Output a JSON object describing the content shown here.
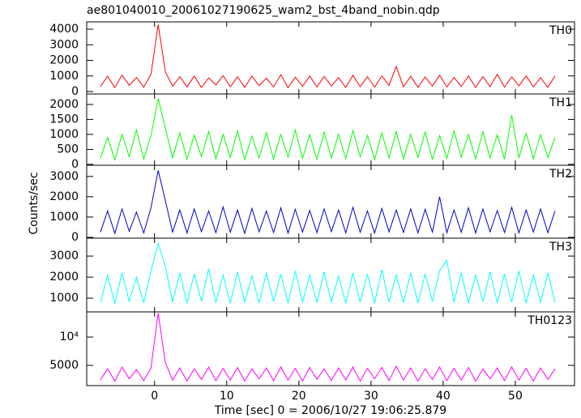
{
  "title": "ae801040010_20061027190625_wam2_bst_4band_nobin.qdp",
  "y_label": "Counts/sec",
  "x_label": "Time [sec] 0 = 2006/10/27 19:06:25.879",
  "chart_data": [
    {
      "type": "line",
      "label": "TH0",
      "color": "#ff0000",
      "log_y": false,
      "xlim": [
        -9.4,
        58.2
      ],
      "xticks": [
        0,
        10,
        20,
        30,
        40,
        50
      ],
      "ylim": [
        -156,
        4470
      ],
      "yticks": [
        0,
        1000,
        2000,
        3000,
        4000
      ],
      "x": [
        -7.5,
        -6.5,
        -5.5,
        -4.5,
        -3.5,
        -2.5,
        -1.5,
        -0.5,
        0.5,
        1.5,
        2.5,
        3.5,
        4.5,
        5.5,
        6.5,
        7.5,
        8.5,
        9.5,
        10.5,
        11.5,
        12.5,
        13.5,
        14.5,
        15.5,
        16.5,
        17.5,
        18.5,
        19.5,
        20.5,
        21.5,
        22.5,
        23.5,
        24.5,
        25.5,
        26.5,
        27.5,
        28.5,
        29.5,
        30.5,
        31.5,
        32.5,
        33.5,
        34.5,
        35.5,
        36.5,
        37.5,
        38.5,
        39.5,
        40.5,
        41.5,
        42.5,
        43.5,
        44.5,
        45.5,
        46.5,
        47.5,
        48.5,
        49.5,
        50.5,
        51.5,
        52.5,
        53.5,
        54.5,
        55.5
      ],
      "values": [
        320,
        980,
        250,
        1050,
        400,
        900,
        280,
        1100,
        4300,
        1250,
        350,
        950,
        300,
        1000,
        260,
        880,
        420,
        1020,
        310,
        940,
        270,
        990,
        380,
        860,
        300,
        1080,
        250,
        920,
        340,
        1000,
        290,
        970,
        360,
        890,
        260,
        1040,
        310,
        950,
        280,
        1010,
        400,
        1600,
        300,
        980,
        270,
        930,
        350,
        1050,
        290,
        900,
        330,
        1000,
        260,
        960,
        310,
        1100,
        280,
        940,
        360,
        1000,
        300,
        890,
        270,
        1000
      ]
    },
    {
      "type": "line",
      "label": "TH1",
      "color": "#00ff00",
      "log_y": false,
      "xlim": [
        -9.4,
        58.2
      ],
      "xticks": [
        0,
        10,
        20,
        30,
        40,
        50
      ],
      "ylim": [
        -30,
        2350
      ],
      "yticks": [
        0,
        500,
        1000,
        1500,
        2000
      ],
      "x": [
        -7.5,
        -6.5,
        -5.5,
        -4.5,
        -3.5,
        -2.5,
        -1.5,
        -0.5,
        0.5,
        1.5,
        2.5,
        3.5,
        4.5,
        5.5,
        6.5,
        7.5,
        8.5,
        9.5,
        10.5,
        11.5,
        12.5,
        13.5,
        14.5,
        15.5,
        16.5,
        17.5,
        18.5,
        19.5,
        20.5,
        21.5,
        22.5,
        23.5,
        24.5,
        25.5,
        26.5,
        27.5,
        28.5,
        29.5,
        30.5,
        31.5,
        32.5,
        33.5,
        34.5,
        35.5,
        36.5,
        37.5,
        38.5,
        39.5,
        40.5,
        41.5,
        42.5,
        43.5,
        44.5,
        45.5,
        46.5,
        47.5,
        48.5,
        49.5,
        50.5,
        51.5,
        52.5,
        53.5,
        54.5,
        55.5
      ],
      "values": [
        200,
        900,
        150,
        1000,
        250,
        1150,
        180,
        950,
        2200,
        1200,
        220,
        1050,
        170,
        980,
        260,
        1100,
        190,
        1000,
        230,
        1120,
        160,
        940,
        210,
        1060,
        180,
        1000,
        240,
        1150,
        200,
        990,
        170,
        1080,
        220,
        1000,
        190,
        1130,
        250,
        970,
        160,
        1050,
        210,
        1100,
        180,
        1000,
        230,
        1080,
        170,
        960,
        200,
        1120,
        240,
        1000,
        180,
        1090,
        210,
        990,
        170,
        1650,
        220,
        1040,
        190,
        1000,
        230,
        900
      ]
    },
    {
      "type": "line",
      "label": "TH2",
      "color": "#0000cc",
      "log_y": false,
      "xlim": [
        -9.4,
        58.2
      ],
      "xticks": [
        0,
        10,
        20,
        30,
        40,
        50
      ],
      "ylim": [
        -40,
        3550
      ],
      "yticks": [
        0,
        1000,
        2000,
        3000
      ],
      "x": [
        -7.5,
        -6.5,
        -5.5,
        -4.5,
        -3.5,
        -2.5,
        -1.5,
        -0.5,
        0.5,
        1.5,
        2.5,
        3.5,
        4.5,
        5.5,
        6.5,
        7.5,
        8.5,
        9.5,
        10.5,
        11.5,
        12.5,
        13.5,
        14.5,
        15.5,
        16.5,
        17.5,
        18.5,
        19.5,
        20.5,
        21.5,
        22.5,
        23.5,
        24.5,
        25.5,
        26.5,
        27.5,
        28.5,
        29.5,
        30.5,
        31.5,
        32.5,
        33.5,
        34.5,
        35.5,
        36.5,
        37.5,
        38.5,
        39.5,
        40.5,
        41.5,
        42.5,
        43.5,
        44.5,
        45.5,
        46.5,
        47.5,
        48.5,
        49.5,
        50.5,
        51.5,
        52.5,
        53.5,
        54.5,
        55.5
      ],
      "values": [
        250,
        1300,
        200,
        1400,
        300,
        1250,
        220,
        1450,
        3300,
        1800,
        260,
        1350,
        210,
        1400,
        280,
        1300,
        230,
        1500,
        250,
        1350,
        200,
        1420,
        270,
        1300,
        240,
        1450,
        210,
        1380,
        260,
        1320,
        230,
        1400,
        280,
        1350,
        220,
        1480,
        250,
        1300,
        210,
        1420,
        270,
        1350,
        240,
        1400,
        220,
        1380,
        260,
        2000,
        230,
        1350,
        250,
        1450,
        210,
        1400,
        270,
        1320,
        240,
        1480,
        220,
        1350,
        260,
        1400,
        230,
        1300
      ]
    },
    {
      "type": "line",
      "label": "TH3",
      "color": "#00ffff",
      "log_y": false,
      "xlim": [
        -9.4,
        58.2
      ],
      "xticks": [
        0,
        10,
        20,
        30,
        40,
        50
      ],
      "ylim": [
        350,
        3850
      ],
      "yticks": [
        1000,
        2000,
        3000
      ],
      "x": [
        -7.5,
        -6.5,
        -5.5,
        -4.5,
        -3.5,
        -2.5,
        -1.5,
        -0.5,
        0.5,
        1.5,
        2.5,
        3.5,
        4.5,
        5.5,
        6.5,
        7.5,
        8.5,
        9.5,
        10.5,
        11.5,
        12.5,
        13.5,
        14.5,
        15.5,
        16.5,
        17.5,
        18.5,
        19.5,
        20.5,
        21.5,
        22.5,
        23.5,
        24.5,
        25.5,
        26.5,
        27.5,
        28.5,
        29.5,
        30.5,
        31.5,
        32.5,
        33.5,
        34.5,
        35.5,
        36.5,
        37.5,
        38.5,
        39.5,
        40.5,
        41.5,
        42.5,
        43.5,
        44.5,
        45.5,
        46.5,
        47.5,
        48.5,
        49.5,
        50.5,
        51.5,
        52.5,
        53.5,
        54.5,
        55.5
      ],
      "values": [
        800,
        2100,
        750,
        2200,
        850,
        2000,
        780,
        2300,
        3600,
        2500,
        820,
        2200,
        760,
        2150,
        850,
        2400,
        790,
        2100,
        760,
        2250,
        820,
        2050,
        770,
        2200,
        840,
        2150,
        760,
        2300,
        800,
        2100,
        780,
        2250,
        830,
        2050,
        760,
        2200,
        810,
        2150,
        770,
        2350,
        820,
        2100,
        790,
        2200,
        760,
        2150,
        830,
        2300,
        2800,
        800,
        2200,
        770,
        2100,
        840,
        2250,
        780,
        2150,
        810,
        2300,
        760,
        2100,
        820,
        2200,
        790
      ]
    },
    {
      "type": "line",
      "label": "TH0123",
      "color": "#ff00ff",
      "log_y": true,
      "xlim": [
        -9.4,
        58.2
      ],
      "xticks": [
        0,
        10,
        20,
        30,
        40,
        50
      ],
      "ylim": [
        3050,
        18500
      ],
      "yticks": [
        5000,
        {
          "value": 10000,
          "label": "10⁴"
        }
      ],
      "x": [
        -7.5,
        -6.5,
        -5.5,
        -4.5,
        -3.5,
        -2.5,
        -1.5,
        -0.5,
        0.5,
        1.5,
        2.5,
        3.5,
        4.5,
        5.5,
        6.5,
        7.5,
        8.5,
        9.5,
        10.5,
        11.5,
        12.5,
        13.5,
        14.5,
        15.5,
        16.5,
        17.5,
        18.5,
        19.5,
        20.5,
        21.5,
        22.5,
        23.5,
        24.5,
        25.5,
        26.5,
        27.5,
        28.5,
        29.5,
        30.5,
        31.5,
        32.5,
        33.5,
        34.5,
        35.5,
        36.5,
        37.5,
        38.5,
        39.5,
        40.5,
        41.5,
        42.5,
        43.5,
        44.5,
        45.5,
        46.5,
        47.5,
        48.5,
        49.5,
        50.5,
        51.5,
        52.5,
        53.5,
        54.5,
        55.5
      ],
      "values": [
        3500,
        4600,
        3400,
        4800,
        3600,
        4500,
        3450,
        4700,
        18000,
        5300,
        3500,
        4700,
        3400,
        4600,
        3550,
        4800,
        3450,
        4650,
        3500,
        4750,
        3400,
        4600,
        3600,
        4700,
        3450,
        4800,
        3500,
        4650,
        3400,
        4750,
        3550,
        4600,
        3450,
        4700,
        3500,
        4800,
        3400,
        4650,
        3600,
        4750,
        3450,
        4900,
        3500,
        4700,
        3400,
        4600,
        3550,
        4800,
        3450,
        4650,
        3500,
        4750,
        3400,
        4600,
        3600,
        4700,
        3450,
        4800,
        3500,
        4650,
        3400,
        4700,
        3550,
        4600
      ]
    }
  ]
}
